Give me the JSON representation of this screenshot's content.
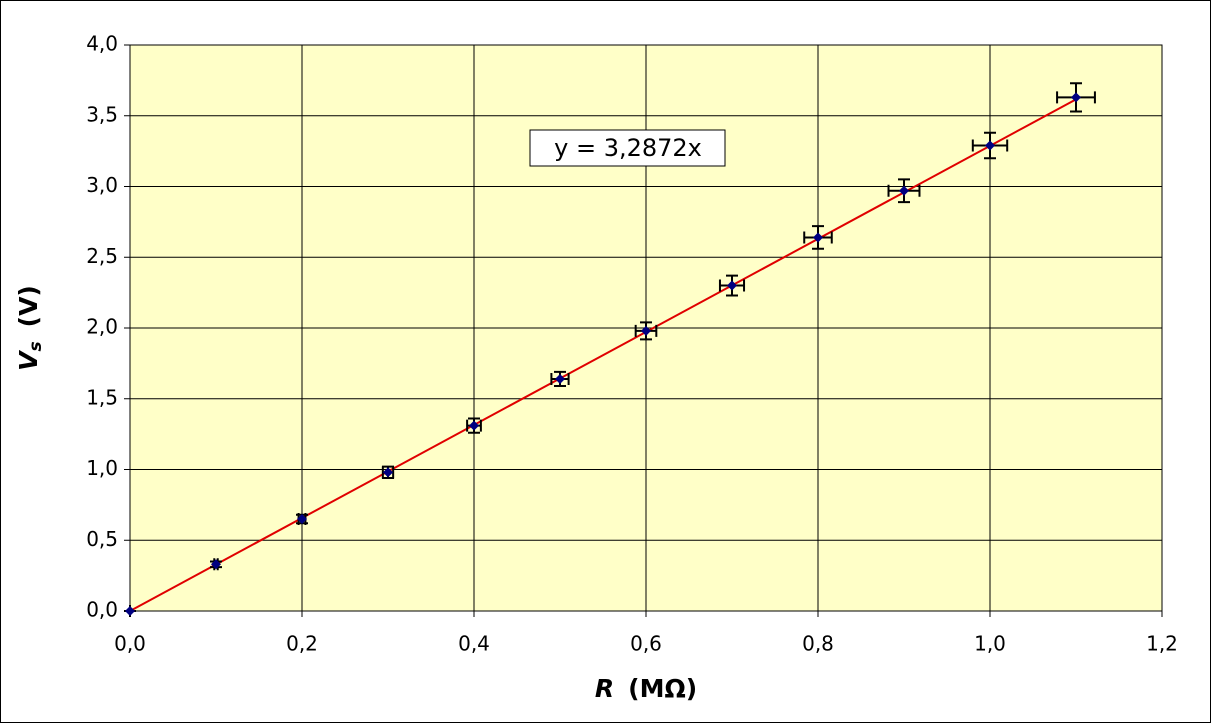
{
  "chart_data": {
    "type": "scatter",
    "x_label": {
      "symbol": "R",
      "unit": "(MΩ)"
    },
    "y_label": {
      "symbol": "V",
      "subscript": "s",
      "unit": "(V)"
    },
    "series": [
      {
        "color": "#000080",
        "x": [
          0,
          0.1,
          0.2,
          0.3,
          0.4,
          0.5,
          0.6,
          0.7,
          0.8,
          0.9,
          1.0,
          1.1
        ],
        "values": [
          0,
          0.33,
          0.65,
          0.98,
          1.31,
          1.64,
          1.98,
          2.3,
          2.64,
          2.97,
          3.29,
          3.63
        ],
        "x_errors": [
          0,
          0.002,
          0.004,
          0.006,
          0.008,
          0.01,
          0.012,
          0.014,
          0.016,
          0.018,
          0.02,
          0.022
        ],
        "y_errors": [
          0,
          0.02,
          0.03,
          0.04,
          0.05,
          0.05,
          0.06,
          0.07,
          0.08,
          0.08,
          0.09,
          0.1
        ]
      }
    ],
    "trendline": {
      "slope": 3.2872,
      "color": "#e00000",
      "label": "y = 3,2872x"
    },
    "xlim": [
      0,
      1.2
    ],
    "ylim": [
      0,
      4
    ],
    "xticks": [
      {
        "value": 0,
        "label": "0,0"
      },
      {
        "value": 0.2,
        "label": "0,2"
      },
      {
        "value": 0.4,
        "label": "0,4"
      },
      {
        "value": 0.6,
        "label": "0,6"
      },
      {
        "value": 0.8,
        "label": "0,8"
      },
      {
        "value": 1.0,
        "label": "1,0"
      },
      {
        "value": 1.2,
        "label": "1,2"
      }
    ],
    "yticks": [
      {
        "value": 0,
        "label": "0,0"
      },
      {
        "value": 0.5,
        "label": "0,5"
      },
      {
        "value": 1.0,
        "label": "1,0"
      },
      {
        "value": 1.5,
        "label": "1,5"
      },
      {
        "value": 2.0,
        "label": "2,0"
      },
      {
        "value": 2.5,
        "label": "2,5"
      },
      {
        "value": 3.0,
        "label": "3,0"
      },
      {
        "value": 3.5,
        "label": "3,5"
      },
      {
        "value": 4.0,
        "label": "4,0"
      }
    ],
    "grid": true,
    "plot_background": "#ffffc8"
  }
}
